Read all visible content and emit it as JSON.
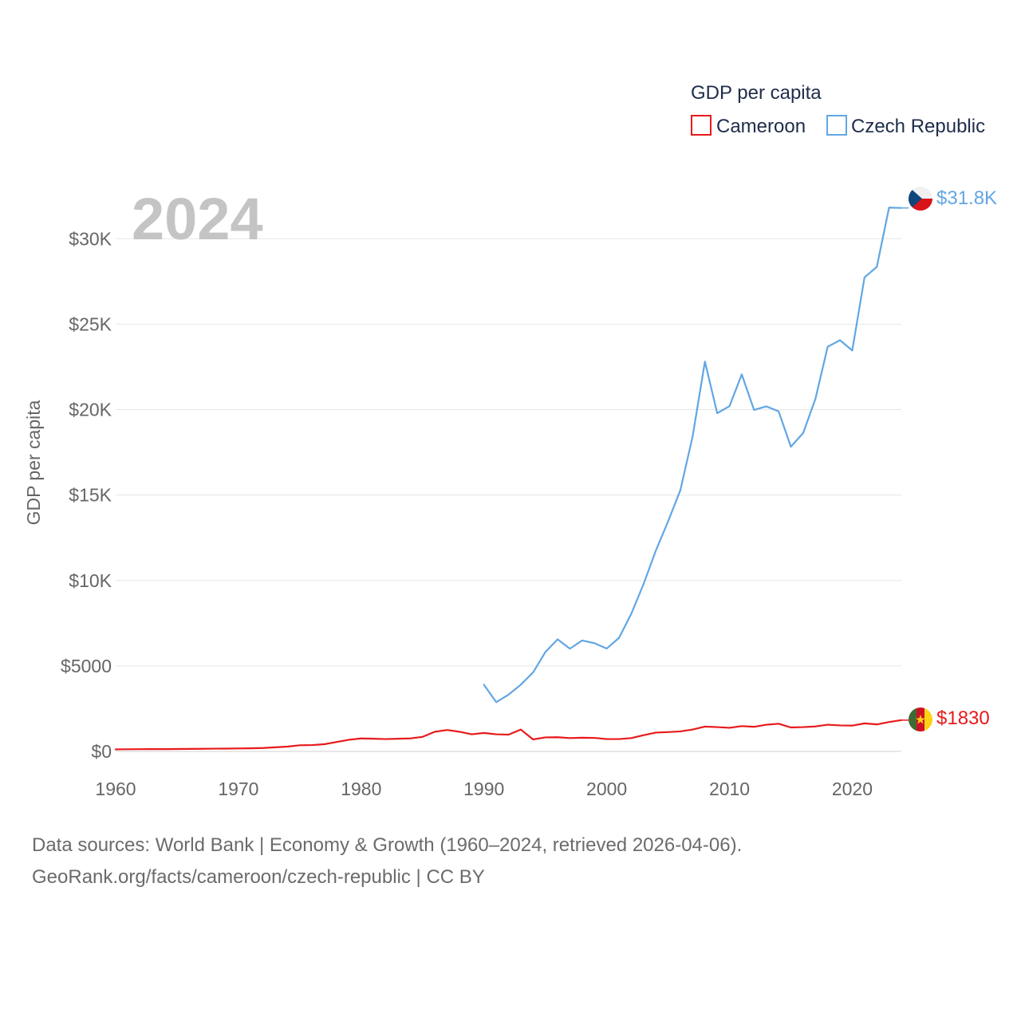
{
  "chart_data": {
    "type": "line",
    "title": "",
    "year_label": "2024",
    "legend_title": "GDP per capita",
    "ylabel": "GDP per capita",
    "xlabel": "",
    "xlim": [
      1960,
      2024
    ],
    "ylim": [
      0,
      33000
    ],
    "x_ticks": [
      1960,
      1970,
      1980,
      1990,
      2000,
      2010,
      2020
    ],
    "y_ticks": [
      {
        "value": 0,
        "label": "$0"
      },
      {
        "value": 5000,
        "label": "$5000"
      },
      {
        "value": 10000,
        "label": "$10K"
      },
      {
        "value": 15000,
        "label": "$15K"
      },
      {
        "value": 20000,
        "label": "$20K"
      },
      {
        "value": 25000,
        "label": "$25K"
      },
      {
        "value": 30000,
        "label": "$30K"
      }
    ],
    "series": [
      {
        "name": "Cameroon",
        "color": "#e8191b",
        "end_label": "$1830",
        "flag": "cameroon-flag",
        "start_year": 1960,
        "values": [
          120,
          125,
          130,
          133,
          136,
          140,
          146,
          152,
          160,
          165,
          172,
          180,
          200,
          240,
          280,
          360,
          370,
          420,
          550,
          680,
          760,
          740,
          720,
          740,
          760,
          850,
          1150,
          1250,
          1150,
          1000,
          1080,
          1000,
          980,
          1280,
          700,
          820,
          830,
          780,
          800,
          790,
          720,
          720,
          780,
          950,
          1100,
          1130,
          1170,
          1280,
          1450,
          1420,
          1380,
          1480,
          1440,
          1560,
          1620,
          1400,
          1420,
          1460,
          1560,
          1520,
          1510,
          1640,
          1580,
          1720,
          1830
        ]
      },
      {
        "name": "Czech Republic",
        "color": "#62a6e4",
        "end_label": "$31.8K",
        "flag": "czech-flag",
        "start_year": 1990,
        "values": [
          3900,
          2880,
          3320,
          3900,
          4620,
          5810,
          6560,
          6010,
          6490,
          6330,
          6020,
          6640,
          8050,
          9790,
          11750,
          13460,
          15290,
          18440,
          22810,
          19790,
          20200,
          22060,
          19980,
          20190,
          19900,
          17830,
          18630,
          20630,
          23680,
          24060,
          23460,
          27740,
          28350,
          31820,
          31800
        ]
      }
    ],
    "source_line1": "Data sources: World Bank | Economy & Growth (1960–2024, retrieved 2026-04-06).",
    "source_line2": "GeoRank.org/facts/cameroon/czech-republic | CC BY"
  }
}
